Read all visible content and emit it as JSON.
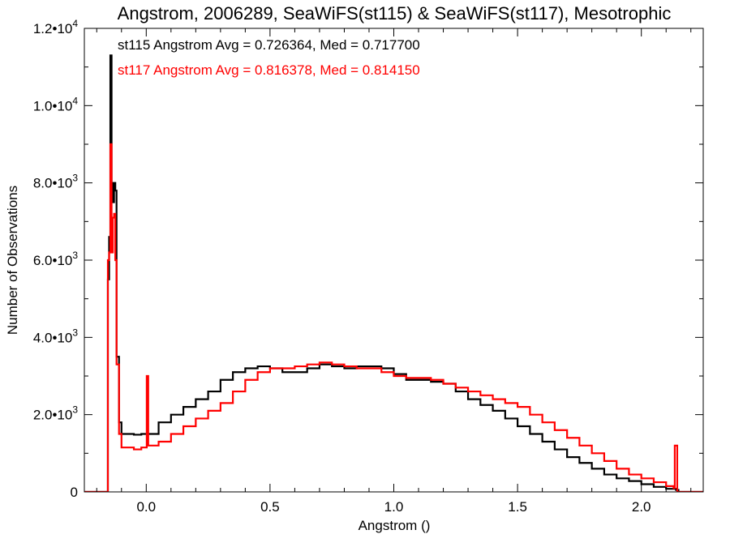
{
  "chart_data": {
    "type": "line",
    "title": "Angstrom, 2006289, SeaWiFS(st115) & SeaWiFS(st117), Mesotrophic",
    "xlabel": "Angstrom ()",
    "ylabel": "Number of Observations",
    "xlim": [
      -0.25,
      2.25
    ],
    "ylim": [
      0,
      12000
    ],
    "xticks": [
      0.0,
      0.5,
      1.0,
      1.5,
      2.0
    ],
    "xtick_labels": [
      "0.0",
      "0.5",
      "1.0",
      "1.5",
      "2.0"
    ],
    "yticks": [
      0,
      2000,
      4000,
      6000,
      8000,
      10000,
      12000
    ],
    "ytick_labels": [
      {
        "mant": "0",
        "exp": ""
      },
      {
        "mant": "2.0•10",
        "exp": "3"
      },
      {
        "mant": "4.0•10",
        "exp": "3"
      },
      {
        "mant": "6.0•10",
        "exp": "3"
      },
      {
        "mant": "8.0•10",
        "exp": "3"
      },
      {
        "mant": "1.0•10",
        "exp": "4"
      },
      {
        "mant": "1.2•10",
        "exp": "4"
      }
    ],
    "grid": false,
    "series": [
      {
        "name": "st115",
        "color": "#000000",
        "annotation": "st115 Angstrom Avg = 0.726364, Med = 0.717700",
        "points": [
          [
            -0.25,
            0
          ],
          [
            -0.155,
            0
          ],
          [
            -0.155,
            5500
          ],
          [
            -0.15,
            6600
          ],
          [
            -0.145,
            11300
          ],
          [
            -0.14,
            8000
          ],
          [
            -0.135,
            7500
          ],
          [
            -0.13,
            8000
          ],
          [
            -0.125,
            7800
          ],
          [
            -0.12,
            3500
          ],
          [
            -0.11,
            1800
          ],
          [
            -0.1,
            1500
          ],
          [
            -0.05,
            1480
          ],
          [
            -0.02,
            1500
          ],
          [
            0.0,
            1500
          ],
          [
            0.05,
            1800
          ],
          [
            0.1,
            2000
          ],
          [
            0.15,
            2200
          ],
          [
            0.2,
            2400
          ],
          [
            0.25,
            2600
          ],
          [
            0.3,
            2900
          ],
          [
            0.35,
            3100
          ],
          [
            0.4,
            3200
          ],
          [
            0.45,
            3250
          ],
          [
            0.5,
            3200
          ],
          [
            0.55,
            3100
          ],
          [
            0.6,
            3100
          ],
          [
            0.65,
            3200
          ],
          [
            0.7,
            3300
          ],
          [
            0.75,
            3250
          ],
          [
            0.8,
            3200
          ],
          [
            0.85,
            3250
          ],
          [
            0.9,
            3250
          ],
          [
            0.95,
            3200
          ],
          [
            1.0,
            3050
          ],
          [
            1.05,
            2900
          ],
          [
            1.1,
            2900
          ],
          [
            1.15,
            2850
          ],
          [
            1.2,
            2800
          ],
          [
            1.25,
            2600
          ],
          [
            1.3,
            2400
          ],
          [
            1.35,
            2250
          ],
          [
            1.4,
            2100
          ],
          [
            1.45,
            1900
          ],
          [
            1.5,
            1700
          ],
          [
            1.55,
            1500
          ],
          [
            1.6,
            1300
          ],
          [
            1.65,
            1100
          ],
          [
            1.7,
            900
          ],
          [
            1.75,
            750
          ],
          [
            1.8,
            600
          ],
          [
            1.85,
            450
          ],
          [
            1.9,
            350
          ],
          [
            1.95,
            280
          ],
          [
            2.0,
            200
          ],
          [
            2.05,
            130
          ],
          [
            2.1,
            80
          ],
          [
            2.14,
            50
          ],
          [
            2.15,
            0
          ],
          [
            2.25,
            0
          ]
        ]
      },
      {
        "name": "st117",
        "color": "#ff0000",
        "annotation": "st117 Angstrom Avg = 0.816378, Med = 0.814150",
        "points": [
          [
            -0.25,
            0
          ],
          [
            -0.155,
            0
          ],
          [
            -0.155,
            6000
          ],
          [
            -0.15,
            6200
          ],
          [
            -0.145,
            9000
          ],
          [
            -0.14,
            6200
          ],
          [
            -0.135,
            7100
          ],
          [
            -0.13,
            7200
          ],
          [
            -0.125,
            6000
          ],
          [
            -0.12,
            3300
          ],
          [
            -0.11,
            1500
          ],
          [
            -0.1,
            1150
          ],
          [
            -0.05,
            1100
          ],
          [
            -0.02,
            1150
          ],
          [
            0.0,
            1150
          ],
          [
            0.002,
            3000
          ],
          [
            0.008,
            1200
          ],
          [
            0.05,
            1300
          ],
          [
            0.1,
            1500
          ],
          [
            0.15,
            1700
          ],
          [
            0.2,
            1900
          ],
          [
            0.25,
            2100
          ],
          [
            0.3,
            2300
          ],
          [
            0.35,
            2600
          ],
          [
            0.4,
            2900
          ],
          [
            0.45,
            3100
          ],
          [
            0.5,
            3200
          ],
          [
            0.55,
            3200
          ],
          [
            0.6,
            3250
          ],
          [
            0.65,
            3300
          ],
          [
            0.7,
            3350
          ],
          [
            0.75,
            3300
          ],
          [
            0.8,
            3250
          ],
          [
            0.85,
            3200
          ],
          [
            0.9,
            3200
          ],
          [
            0.95,
            3100
          ],
          [
            1.0,
            3000
          ],
          [
            1.05,
            2950
          ],
          [
            1.1,
            2950
          ],
          [
            1.15,
            2900
          ],
          [
            1.2,
            2800
          ],
          [
            1.25,
            2700
          ],
          [
            1.3,
            2600
          ],
          [
            1.35,
            2500
          ],
          [
            1.4,
            2400
          ],
          [
            1.45,
            2300
          ],
          [
            1.5,
            2200
          ],
          [
            1.55,
            2000
          ],
          [
            1.6,
            1800
          ],
          [
            1.65,
            1600
          ],
          [
            1.7,
            1400
          ],
          [
            1.75,
            1200
          ],
          [
            1.8,
            1000
          ],
          [
            1.85,
            800
          ],
          [
            1.9,
            600
          ],
          [
            1.95,
            450
          ],
          [
            2.0,
            350
          ],
          [
            2.05,
            250
          ],
          [
            2.1,
            150
          ],
          [
            2.13,
            100
          ],
          [
            2.135,
            1200
          ],
          [
            2.14,
            1200
          ],
          [
            2.145,
            0
          ],
          [
            2.25,
            0
          ]
        ]
      }
    ]
  }
}
